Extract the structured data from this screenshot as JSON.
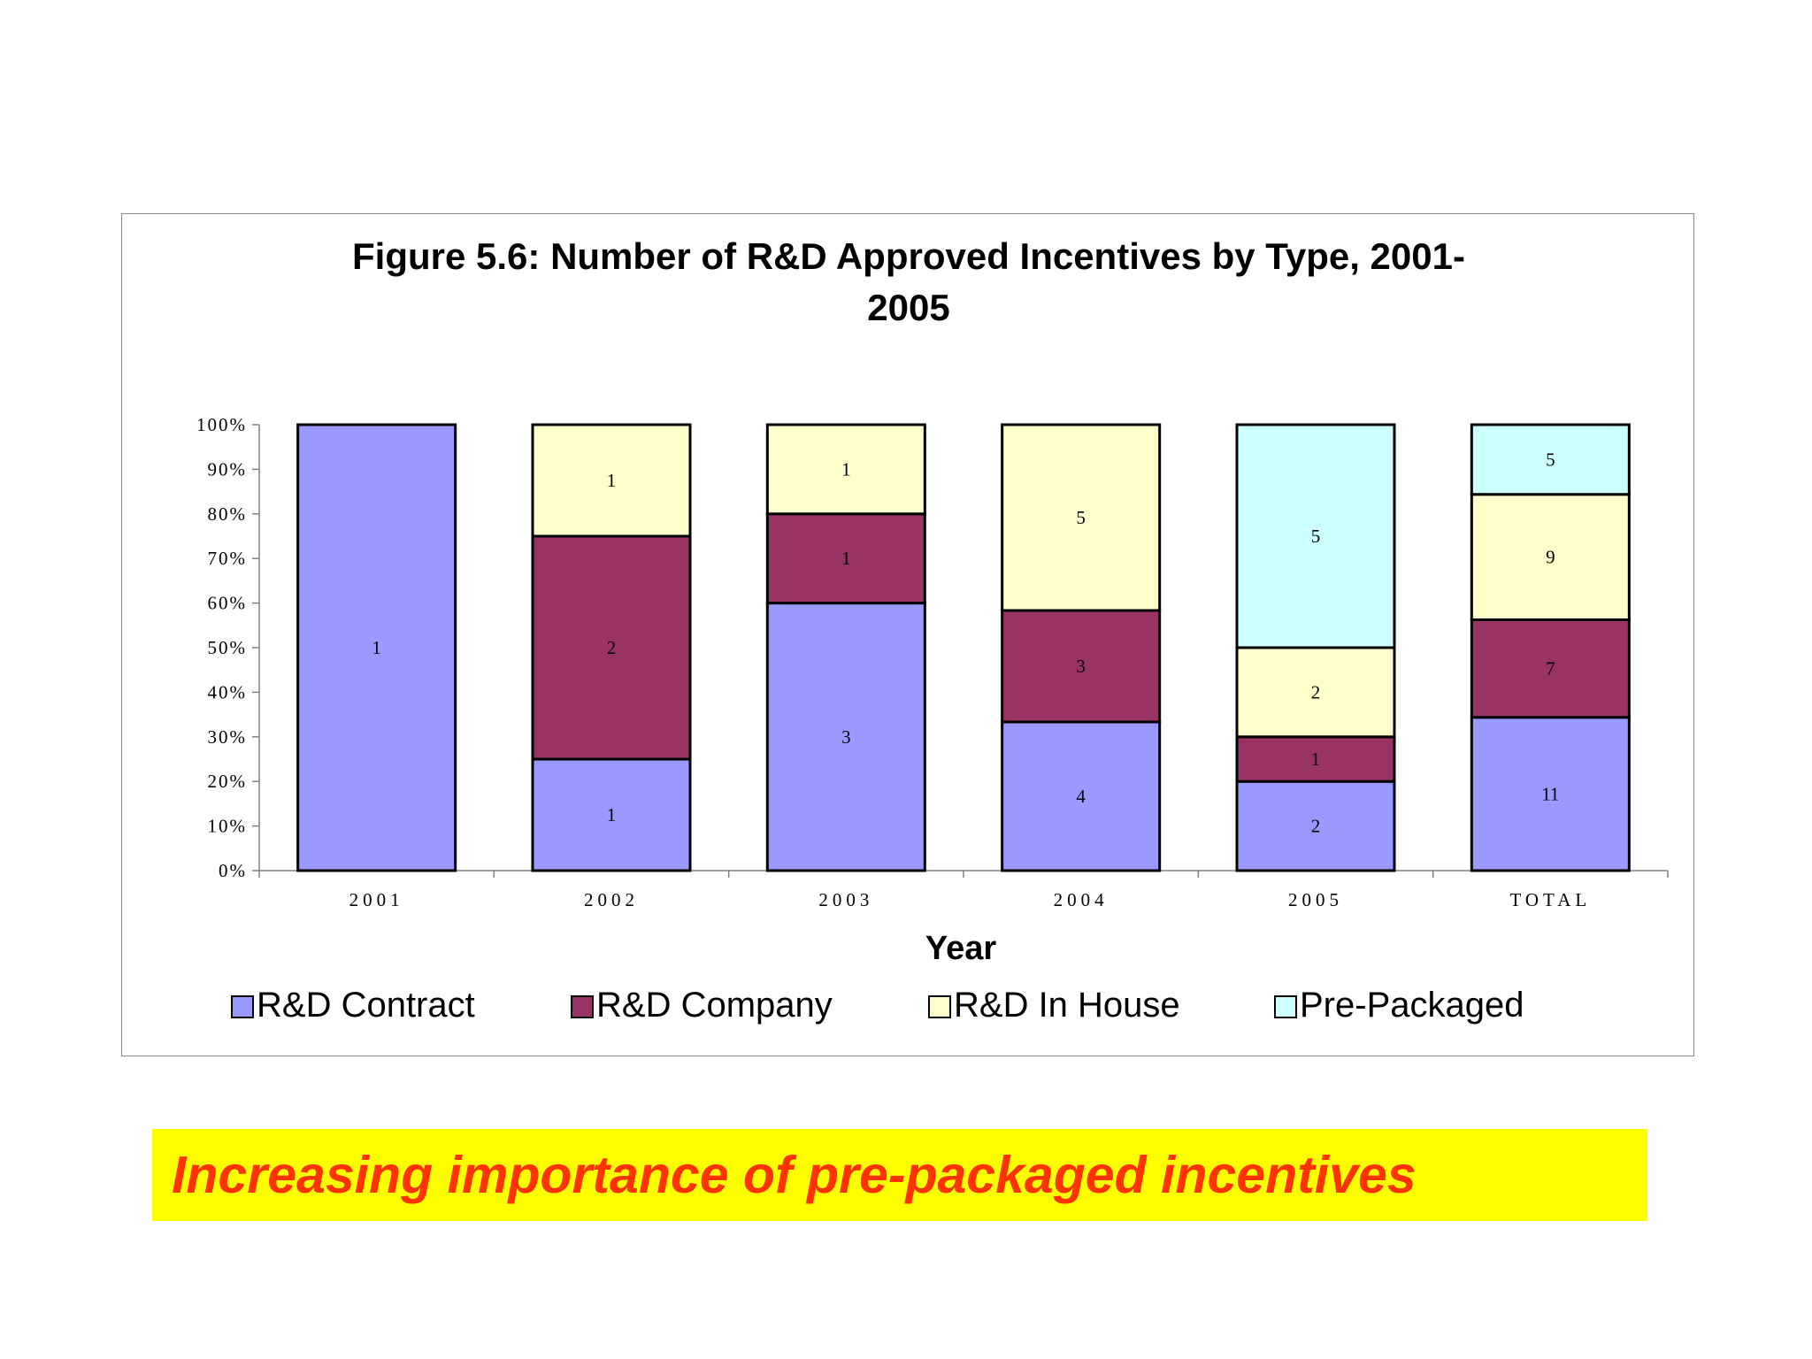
{
  "callout": {
    "text": "Increasing importance of pre-packaged incentives",
    "background": "#ffff00",
    "color": "#ff3300"
  },
  "chart_data": {
    "type": "bar",
    "stacked": "percent",
    "title_lines": [
      "Figure 5.6: Number of R&D Approved Incentives by Type, 2001-",
      "2005"
    ],
    "xlabel": "Year",
    "ylabel": "",
    "categories": [
      "2001",
      "2002",
      "2003",
      "2004",
      "2005",
      "TOTAL"
    ],
    "y_ticks": [
      "0%",
      "10%",
      "20%",
      "30%",
      "40%",
      "50%",
      "60%",
      "70%",
      "80%",
      "90%",
      "100%"
    ],
    "ylim": [
      0,
      100
    ],
    "grid": false,
    "legend_position": "bottom",
    "series": [
      {
        "name": "R&D Contract",
        "color": "#9999ff",
        "values": [
          1,
          1,
          3,
          4,
          2,
          11
        ]
      },
      {
        "name": "R&D Company",
        "color": "#993366",
        "values": [
          0,
          2,
          1,
          3,
          1,
          7
        ]
      },
      {
        "name": "R&D In House",
        "color": "#ffffcc",
        "values": [
          0,
          1,
          1,
          5,
          2,
          9
        ]
      },
      {
        "name": "Pre-Packaged",
        "color": "#ccffff",
        "values": [
          0,
          0,
          0,
          0,
          5,
          5
        ]
      }
    ]
  }
}
